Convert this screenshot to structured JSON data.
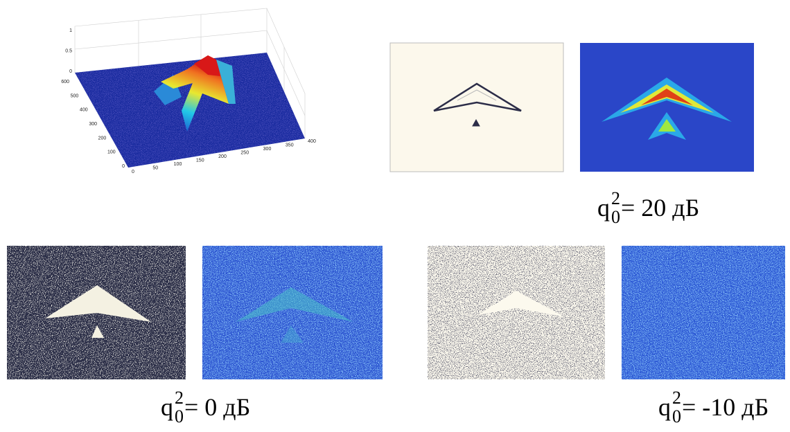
{
  "plot3d": {
    "z_ticks": [
      1,
      0.5,
      0
    ],
    "y_ticks": [
      600,
      500,
      400,
      300,
      200,
      100,
      0
    ],
    "x_ticks": [
      0,
      50,
      100,
      150,
      200,
      250,
      300,
      350,
      400
    ]
  },
  "captions": [
    {
      "symbol": "q",
      "superscript": "2",
      "subscript": "0",
      "text": "= 20 дБ"
    },
    {
      "symbol": "q",
      "superscript": "2",
      "subscript": "0",
      "text": "= 0 дБ"
    },
    {
      "symbol": "q",
      "superscript": "2",
      "subscript": "0",
      "text": "= -10 дБ"
    }
  ]
}
